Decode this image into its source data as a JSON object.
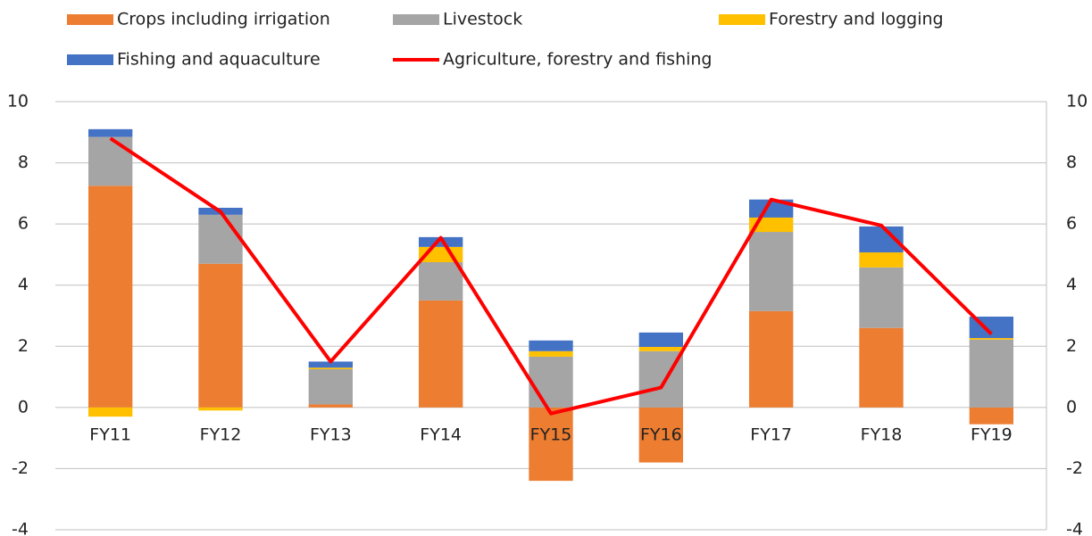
{
  "chart_data": {
    "type": "bar",
    "stacked": true,
    "categories": [
      "FY11",
      "FY12",
      "FY13",
      "FY14",
      "FY15",
      "FY16",
      "FY17",
      "FY18",
      "FY19"
    ],
    "series": [
      {
        "name": "Crops including irrigation",
        "color": "#ed7d31",
        "values": [
          7.25,
          4.7,
          0.1,
          3.5,
          -2.4,
          -1.8,
          3.15,
          2.6,
          -0.55
        ]
      },
      {
        "name": "Livestock",
        "color": "#a5a5a5",
        "values": [
          1.6,
          1.6,
          1.15,
          1.25,
          1.66,
          1.84,
          2.59,
          1.98,
          2.22
        ]
      },
      {
        "name": "Forestry and logging",
        "color": "#ffc000",
        "values": [
          -0.3,
          -0.1,
          0.05,
          0.5,
          0.18,
          0.14,
          0.47,
          0.49,
          0.05
        ]
      },
      {
        "name": "Fishing and aquaculture",
        "color": "#4472c4",
        "values": [
          0.25,
          0.23,
          0.2,
          0.32,
          0.35,
          0.47,
          0.59,
          0.85,
          0.7
        ]
      },
      {
        "name": "Agriculture, forestry and fishing",
        "color": "#ff0000",
        "type": "line",
        "values": [
          8.8,
          6.4,
          1.5,
          5.55,
          -0.2,
          0.65,
          6.8,
          5.95,
          2.4
        ]
      }
    ],
    "ylim": [
      -4,
      10
    ],
    "yticks": [
      -4,
      -2,
      0,
      2,
      4,
      6,
      8,
      10
    ],
    "y2lim": [
      -4,
      10
    ],
    "y2ticks": [
      -4,
      -2,
      0,
      2,
      4,
      6,
      8,
      10
    ],
    "grid": true
  }
}
